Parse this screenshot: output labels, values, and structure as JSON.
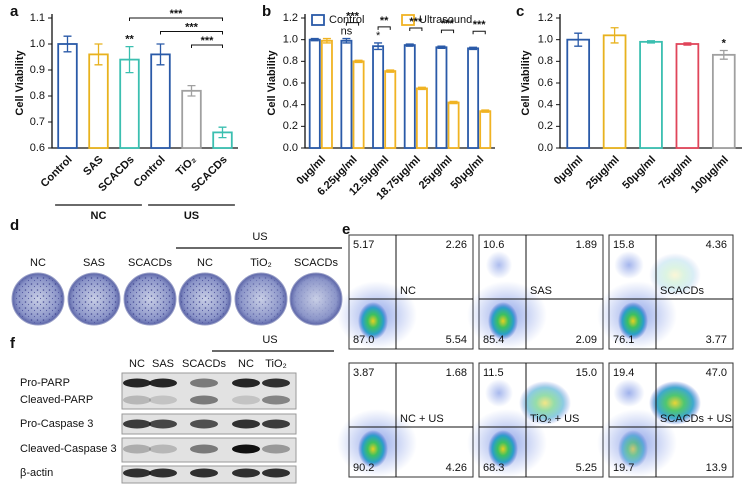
{
  "chart_data": [
    {
      "type": "bar",
      "panel_label": "a",
      "ylabel": "Cell Viability",
      "categories": [
        "Control",
        "SAS",
        "SCACDs",
        "Control",
        "TiO₂",
        "SCACDs"
      ],
      "values": [
        1.0,
        0.96,
        0.94,
        0.96,
        0.82,
        0.66
      ],
      "errors": [
        0.03,
        0.04,
        0.05,
        0.04,
        0.02,
        0.02
      ],
      "colors": [
        "#2a5aa8",
        "#e8b21e",
        "#3bbfb0",
        "#2a5aa8",
        "#a0a0a0",
        "#3bbfb0"
      ],
      "ylim": [
        0.6,
        1.1
      ],
      "yticks": [
        0.6,
        0.7,
        0.8,
        0.9,
        {
          "value": 1,
          "label": "1.0"
        },
        1.1
      ],
      "groups": [
        {
          "label": "NC",
          "from": 0,
          "to": 2
        },
        {
          "label": "US",
          "from": 3,
          "to": 5
        }
      ],
      "annotations": [
        {
          "text": "**",
          "at": 2
        },
        {
          "text": "***",
          "from": 2,
          "to": 5
        },
        {
          "text": "***",
          "from": 3,
          "to": 5
        },
        {
          "text": "***",
          "from": 4,
          "to": 5
        }
      ]
    },
    {
      "type": "bar",
      "panel_label": "b",
      "ylabel": "Cell Viability",
      "categories": [
        "0μg/ml",
        "6.25μg/ml",
        "12.5μg/ml",
        "18.75μg/ml",
        "25μg/ml",
        "50μg/ml"
      ],
      "series": [
        {
          "name": "Control",
          "color": "#2a5aa8",
          "values": [
            1.0,
            0.99,
            0.94,
            0.95,
            0.93,
            0.92
          ],
          "errors": [
            0.01,
            0.02,
            0.03,
            0.01,
            0.01,
            0.01
          ]
        },
        {
          "name": "Ultrasound",
          "color": "#f0b323",
          "values": [
            0.99,
            0.8,
            0.71,
            0.55,
            0.42,
            0.34
          ],
          "errors": [
            0.02,
            0.01,
            0.01,
            0.01,
            0.01,
            0.01
          ]
        }
      ],
      "ylim": [
        0,
        1.2
      ],
      "yticks": [
        {
          "value": 0,
          "label": "0.0"
        },
        0.2,
        0.4,
        0.6,
        0.8,
        {
          "value": 1,
          "label": "1.0"
        },
        1.2
      ],
      "annotations": [
        {
          "text": "ns",
          "at": 1,
          "series": 0
        },
        {
          "text": "*",
          "at": 2,
          "series": 0
        },
        {
          "text": "***",
          "at": 1
        },
        {
          "text": "**",
          "at": 2
        },
        {
          "text": "***",
          "at": 3
        },
        {
          "text": "***",
          "at": 4
        },
        {
          "text": "***",
          "at": 5
        }
      ]
    },
    {
      "type": "bar",
      "panel_label": "c",
      "ylabel": "Cell Viability",
      "categories": [
        "0μg/ml",
        "25μg/ml",
        "50μg/ml",
        "75μg/ml",
        "100μg/ml"
      ],
      "values": [
        1.0,
        1.04,
        0.98,
        0.96,
        0.86
      ],
      "errors": [
        0.06,
        0.07,
        0.01,
        0.01,
        0.04
      ],
      "colors": [
        "#2a5aa8",
        "#e8b21e",
        "#3bbfb0",
        "#e0455a",
        "#a0a0a0"
      ],
      "ylim": [
        0,
        1.2
      ],
      "yticks": [
        {
          "value": 0,
          "label": "0.0"
        },
        0.2,
        0.4,
        0.6,
        0.8,
        {
          "value": 1,
          "label": "1.0"
        },
        1.2
      ],
      "annotations": [
        {
          "text": "*",
          "at": 4
        }
      ]
    }
  ],
  "panel_d": {
    "panel_label": "d",
    "group_label": "US",
    "plates": [
      "NC",
      "SAS",
      "SCACDs",
      "NC",
      "TiO₂",
      "SCACDs"
    ]
  },
  "panel_e": {
    "panel_label": "e",
    "plots": [
      {
        "label": "NC",
        "quadrants": [
          "5.17",
          "2.26",
          "87.0",
          "5.54"
        ]
      },
      {
        "label": "SAS",
        "quadrants": [
          "10.6",
          "1.89",
          "85.4",
          "2.09"
        ]
      },
      {
        "label": "SCACDs",
        "quadrants": [
          "15.8",
          "4.36",
          "76.1",
          "3.77"
        ]
      },
      {
        "label": "NC + US",
        "quadrants": [
          "3.87",
          "1.68",
          "90.2",
          "4.26"
        ]
      },
      {
        "label": "TiO₂ + US",
        "quadrants": [
          "11.5",
          "15.0",
          "68.3",
          "5.25"
        ]
      },
      {
        "label": "SCACDs + US",
        "quadrants": [
          "19.4",
          "47.0",
          "19.7",
          "13.9"
        ]
      }
    ]
  },
  "panel_f": {
    "panel_label": "f",
    "group_label": "US",
    "lanes": [
      "NC",
      "SAS",
      "SCACDs",
      "NC",
      "TiO₂"
    ],
    "rows": [
      "Pro-PARP",
      "Cleaved-PARP",
      "Pro-Caspase 3",
      "Cleaved-Caspase 3",
      "β-actin"
    ]
  }
}
